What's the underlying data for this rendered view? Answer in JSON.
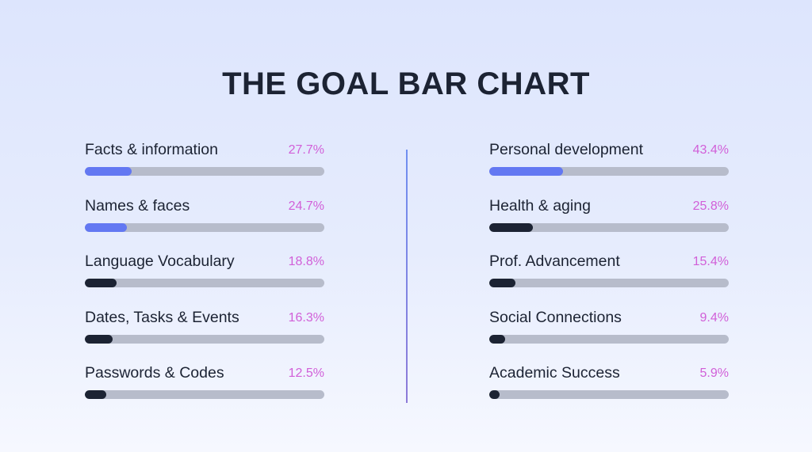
{
  "chart_data": {
    "type": "bar",
    "title": "THE GOAL BAR CHART",
    "scale_max": 100,
    "columns": [
      {
        "items": [
          {
            "label": "Facts & information",
            "value": 27.7,
            "display": "27.7%",
            "color": "#6378f2"
          },
          {
            "label": "Names & faces",
            "value": 24.7,
            "display": "24.7%",
            "color": "#6378f2"
          },
          {
            "label": "Language Vocabulary",
            "value": 18.8,
            "display": "18.8%",
            "color": "#1c2333"
          },
          {
            "label": "Dates, Tasks & Events",
            "value": 16.3,
            "display": "16.3%",
            "color": "#1c2333"
          },
          {
            "label": "Passwords & Codes",
            "value": 12.5,
            "display": "12.5%",
            "color": "#1c2333"
          }
        ]
      },
      {
        "items": [
          {
            "label": "Personal development",
            "value": 43.4,
            "display": "43.4%",
            "color": "#6378f2"
          },
          {
            "label": "Health & aging",
            "value": 25.8,
            "display": "25.8%",
            "color": "#1c2333"
          },
          {
            "label": "Prof. Advancement",
            "value": 15.4,
            "display": "15.4%",
            "color": "#1c2333"
          },
          {
            "label": "Social Connections",
            "value": 9.4,
            "display": "9.4%",
            "color": "#1c2333"
          },
          {
            "label": "Academic Success",
            "value": 5.9,
            "display": "5.9%",
            "color": "#1c2333"
          }
        ]
      }
    ]
  }
}
